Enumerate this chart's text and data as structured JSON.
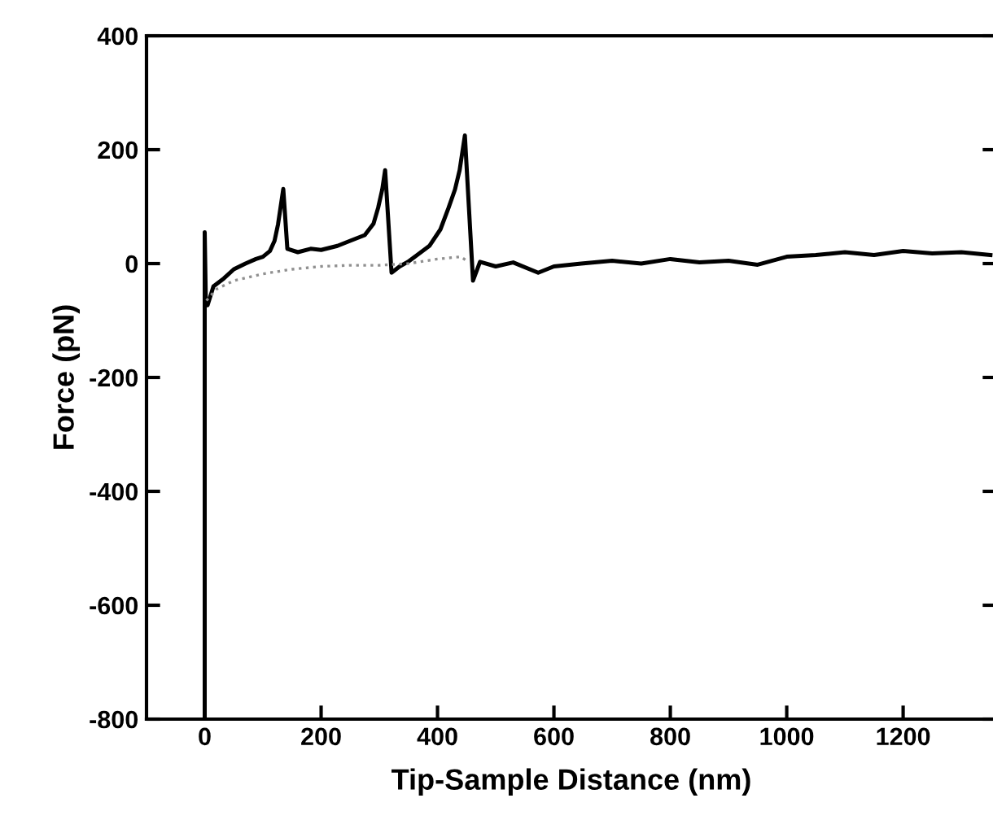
{
  "chart_data": {
    "type": "line",
    "xlabel": "Tip-Sample Distance (nm)",
    "ylabel": "Force (pN)",
    "xlim": [
      -100,
      1360
    ],
    "xticks": [
      0,
      200,
      400,
      600,
      800,
      1000,
      1200
    ],
    "ylim": [
      -800,
      400
    ],
    "yticks": [
      -800,
      -600,
      -400,
      -200,
      0,
      200,
      400
    ],
    "grid": false,
    "legend": false,
    "marker": "none",
    "series": [
      {
        "color": "#000000",
        "line_style": "solid",
        "x": [
          0,
          0,
          2,
          5,
          15,
          33,
          50,
          70,
          88,
          100,
          112,
          120,
          126,
          135,
          142,
          160,
          182,
          200,
          228,
          250,
          275,
          290,
          298,
          305,
          310,
          321,
          335,
          349,
          365,
          386,
          405,
          419,
          430,
          438,
          447,
          461,
          473,
          500,
          530,
          573,
          600,
          647,
          700,
          750,
          800,
          850,
          900,
          950,
          1000,
          1050,
          1100,
          1150,
          1200,
          1250,
          1300,
          1350
        ],
        "values": [
          -800,
          55,
          -70,
          -73,
          -40,
          -26,
          -10,
          0,
          8,
          12,
          22,
          40,
          69,
          131,
          26,
          20,
          26,
          24,
          31,
          40,
          50,
          70,
          98,
          130,
          164,
          -16,
          -5,
          3,
          15,
          31,
          60,
          98,
          130,
          164,
          225,
          -30,
          3,
          -5,
          2,
          -16,
          -5,
          0,
          5,
          0,
          8,
          2,
          5,
          -2,
          12,
          15,
          20,
          15,
          22,
          18,
          20,
          15
        ]
      },
      {
        "color": "#909090",
        "line_style": "dotted",
        "x": [
          3,
          20,
          50,
          100,
          150,
          200,
          250,
          300,
          350,
          400,
          440,
          450
        ],
        "values": [
          -65,
          -45,
          -30,
          -18,
          -10,
          -5,
          -3,
          -3,
          0,
          8,
          12,
          5
        ]
      }
    ]
  }
}
